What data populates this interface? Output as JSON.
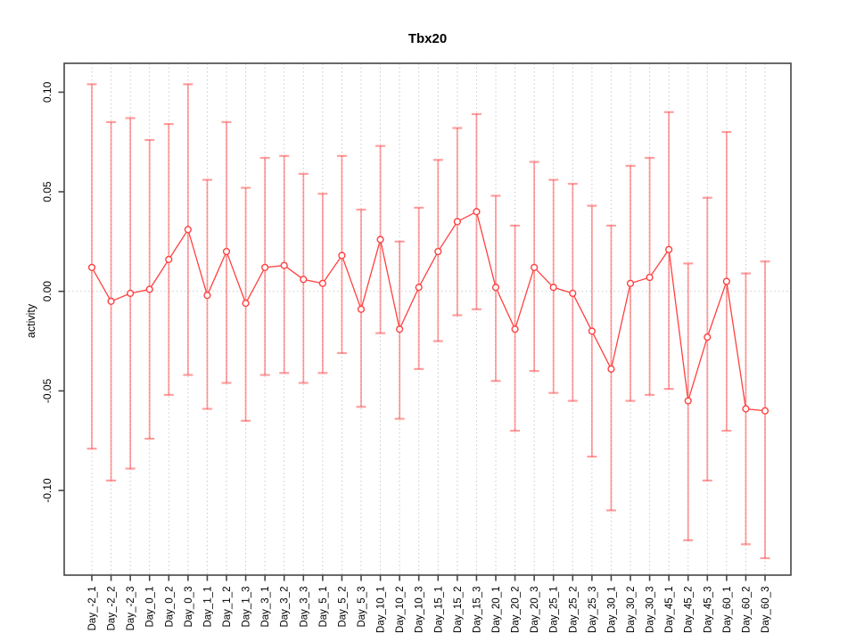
{
  "chart_data": {
    "type": "line",
    "title": "Tbx20",
    "ylabel": "activity",
    "xlabel": "",
    "legend": "none",
    "point_style": "open-circle-with-error-bars",
    "grid": "vertical dotted gridline at each category; horizontal dotted line at y=0",
    "categories": [
      "Day_-2_1",
      "Day_-2_2",
      "Day_-2_3",
      "Day_0_1",
      "Day_0_2",
      "Day_0_3",
      "Day_1_1",
      "Day_1_2",
      "Day_1_3",
      "Day_3_1",
      "Day_3_2",
      "Day_3_3",
      "Day_5_1",
      "Day_5_2",
      "Day_5_3",
      "Day_10_1",
      "Day_10_2",
      "Day_10_3",
      "Day_15_1",
      "Day_15_2",
      "Day_15_3",
      "Day_20_1",
      "Day_20_2",
      "Day_20_3",
      "Day_25_1",
      "Day_25_2",
      "Day_25_3",
      "Day_30_1",
      "Day_30_2",
      "Day_30_3",
      "Day_45_1",
      "Day_45_2",
      "Day_45_3",
      "Day_60_1",
      "Day_60_2",
      "Day_60_3"
    ],
    "series": [
      {
        "name": "activity",
        "values": [
          0.012,
          -0.005,
          -0.001,
          0.001,
          0.016,
          0.031,
          -0.002,
          0.02,
          -0.006,
          0.012,
          0.013,
          0.006,
          0.004,
          0.018,
          -0.009,
          0.026,
          -0.019,
          0.002,
          0.02,
          0.035,
          0.04,
          0.002,
          -0.019,
          0.012,
          0.002,
          -0.001,
          -0.02,
          -0.039,
          0.004,
          0.007,
          0.021,
          -0.055,
          -0.023,
          0.005,
          -0.059,
          -0.06
        ],
        "error_high": [
          0.104,
          0.085,
          0.087,
          0.076,
          0.084,
          0.104,
          0.056,
          0.085,
          0.052,
          0.067,
          0.068,
          0.059,
          0.049,
          0.068,
          0.041,
          0.073,
          0.025,
          0.042,
          0.066,
          0.082,
          0.089,
          0.048,
          0.033,
          0.065,
          0.056,
          0.054,
          0.043,
          0.033,
          0.063,
          0.067,
          0.09,
          0.014,
          0.047,
          0.08,
          0.009,
          0.015
        ],
        "error_low": [
          -0.079,
          -0.095,
          -0.089,
          -0.074,
          -0.052,
          -0.042,
          -0.059,
          -0.046,
          -0.065,
          -0.042,
          -0.041,
          -0.046,
          -0.041,
          -0.031,
          -0.058,
          -0.021,
          -0.064,
          -0.039,
          -0.025,
          -0.012,
          -0.009,
          -0.045,
          -0.07,
          -0.04,
          -0.051,
          -0.055,
          -0.083,
          -0.11,
          -0.055,
          -0.052,
          -0.049,
          -0.125,
          -0.095,
          -0.07,
          -0.127,
          -0.134
        ]
      }
    ],
    "ylim": [
      -0.1425,
      0.1145
    ],
    "yticks": [
      0.1,
      0.05,
      0.0,
      -0.05,
      -0.1
    ],
    "ytick_labels": [
      "0.10",
      "0.05",
      "0.00",
      "-0.05",
      "-0.10"
    ],
    "colors": {
      "line": "#ff4040",
      "point": "#ff4040",
      "error_bar": "rgba(255,64,64,0.5)",
      "gridline": "#c9c9c9",
      "zero_line": "#c9c9c9",
      "axis_box": "#454545",
      "text": "#000000"
    }
  }
}
